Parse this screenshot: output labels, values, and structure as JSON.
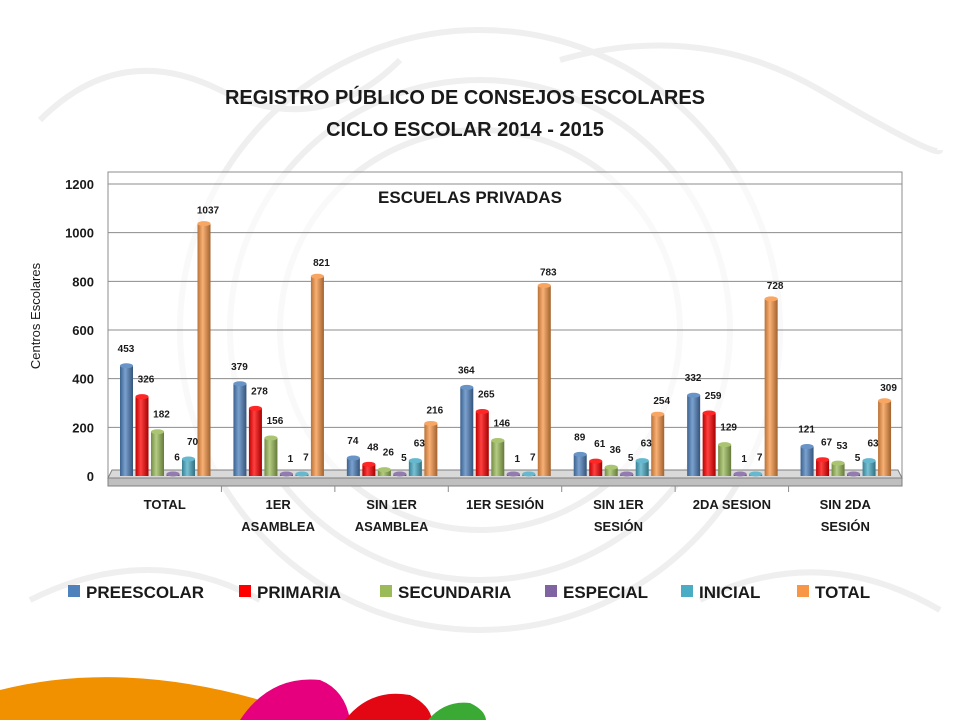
{
  "title_line1": "REGISTRO PÚBLICO DE CONSEJOS ESCOLARES",
  "title_line2": "CICLO ESCOLAR 2014 - 2015",
  "chart_data": {
    "type": "bar",
    "subtitle": "ESCUELAS PRIVADAS",
    "ylabel": "Centros Escolares",
    "ylim": [
      0,
      1200
    ],
    "yticks": [
      0,
      200,
      400,
      600,
      800,
      1000,
      1200
    ],
    "grid": true,
    "legend_position": "bottom",
    "categories": [
      [
        "TOTAL"
      ],
      [
        "1ER",
        "ASAMBLEA"
      ],
      [
        "SIN 1ER",
        "ASAMBLEA"
      ],
      [
        "1ER SESIÓN"
      ],
      [
        "SIN 1ER",
        "SESIÓN"
      ],
      [
        "2DA SESION"
      ],
      [
        "SIN 2DA",
        "SESIÓN"
      ]
    ],
    "series": [
      {
        "name": "PREESCOLAR",
        "color": "#4f81bd",
        "values": [
          453,
          379,
          74,
          364,
          89,
          332,
          121
        ]
      },
      {
        "name": "PRIMARIA",
        "color": "#ff0000",
        "values": [
          326,
          278,
          48,
          265,
          61,
          259,
          67
        ]
      },
      {
        "name": "SECUNDARIA",
        "color": "#9bbb59",
        "values": [
          182,
          156,
          26,
          146,
          36,
          129,
          53
        ]
      },
      {
        "name": "ESPECIAL",
        "color": "#8064a2",
        "values": [
          6,
          1,
          5,
          1,
          5,
          1,
          5
        ]
      },
      {
        "name": "INICIAL",
        "color": "#4bacc6",
        "values": [
          70,
          7,
          63,
          7,
          63,
          7,
          63
        ]
      },
      {
        "name": "TOTAL",
        "color": "#f79646",
        "values": [
          1037,
          821,
          216,
          783,
          254,
          728,
          309
        ]
      }
    ]
  }
}
